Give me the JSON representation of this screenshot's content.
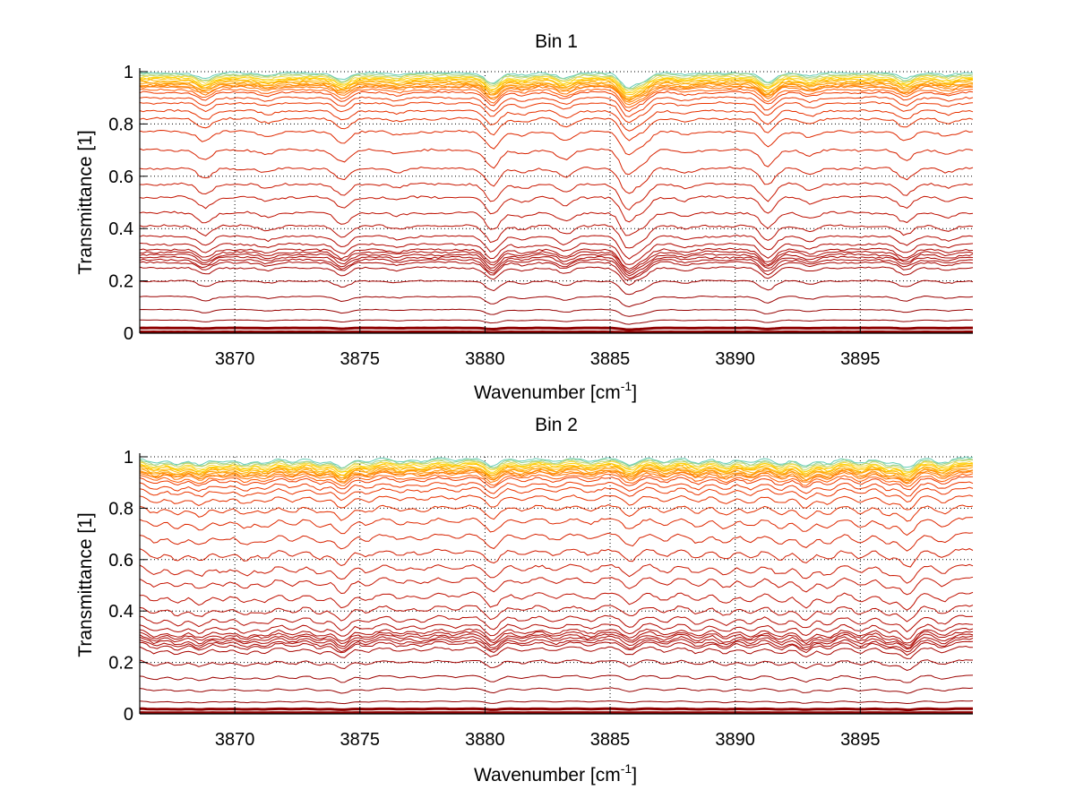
{
  "chart_data": [
    {
      "type": "line",
      "title": "Bin 1",
      "xlabel": "Wavenumber [cm",
      "xlabel_sup": "-1",
      "xlabel_suffix": "]",
      "ylabel": "Transmittance [1]",
      "xlim": [
        3866.2,
        3899.5
      ],
      "ylim": [
        0,
        1
      ],
      "xticks": [
        3870,
        3875,
        3880,
        3885,
        3890,
        3895
      ],
      "yticks": [
        0,
        0.2,
        0.4,
        0.6,
        0.8,
        1
      ],
      "ytick_labels": [
        "0",
        "0.2",
        "0.4",
        "0.6",
        "0.8",
        "1"
      ],
      "xtick_labels": [
        "3870",
        "3875",
        "3880",
        "3885",
        "3890",
        "3895"
      ],
      "grid": "dotted",
      "series_count": 40,
      "series_baselines": [
        0.995,
        0.99,
        0.985,
        0.98,
        0.975,
        0.97,
        0.965,
        0.96,
        0.955,
        0.95,
        0.945,
        0.94,
        0.93,
        0.92,
        0.9,
        0.88,
        0.85,
        0.82,
        0.77,
        0.7,
        0.63,
        0.57,
        0.52,
        0.46,
        0.41,
        0.37,
        0.34,
        0.32,
        0.31,
        0.3,
        0.29,
        0.28,
        0.27,
        0.25,
        0.2,
        0.14,
        0.09,
        0.05,
        0.02,
        0.005
      ],
      "absorption_dips": [
        {
          "x": 3868.8,
          "depth": 0.35
        },
        {
          "x": 3871.3,
          "depth": 0.15
        },
        {
          "x": 3874.3,
          "depth": 0.4
        },
        {
          "x": 3876.5,
          "depth": 0.12
        },
        {
          "x": 3880.3,
          "depth": 0.6
        },
        {
          "x": 3881.5,
          "depth": 0.15
        },
        {
          "x": 3883.2,
          "depth": 0.3
        },
        {
          "x": 3885.7,
          "depth": 0.8
        },
        {
          "x": 3886.3,
          "depth": 0.45
        },
        {
          "x": 3888.0,
          "depth": 0.12
        },
        {
          "x": 3891.3,
          "depth": 0.55
        },
        {
          "x": 3893.0,
          "depth": 0.2
        },
        {
          "x": 3896.8,
          "depth": 0.35
        },
        {
          "x": 3898.5,
          "depth": 0.15
        }
      ],
      "colormap": "jet (dark red at low transmittance → orange/yellow → cyan/blue near 1)"
    },
    {
      "type": "line",
      "title": "Bin 2",
      "xlabel": "Wavenumber [cm",
      "xlabel_sup": "-1",
      "xlabel_suffix": "]",
      "ylabel": "Transmittance [1]",
      "xlim": [
        3866.2,
        3899.5
      ],
      "ylim": [
        0,
        1
      ],
      "xticks": [
        3870,
        3875,
        3880,
        3885,
        3890,
        3895
      ],
      "yticks": [
        0,
        0.2,
        0.4,
        0.6,
        0.8,
        1
      ],
      "ytick_labels": [
        "0",
        "0.2",
        "0.4",
        "0.6",
        "0.8",
        "1"
      ],
      "xtick_labels": [
        "3870",
        "3875",
        "3880",
        "3885",
        "3890",
        "3895"
      ],
      "grid": "dotted",
      "series_count": 40,
      "series_baselines": [
        0.995,
        0.99,
        0.985,
        0.98,
        0.975,
        0.97,
        0.965,
        0.96,
        0.955,
        0.95,
        0.945,
        0.94,
        0.93,
        0.92,
        0.9,
        0.88,
        0.85,
        0.81,
        0.76,
        0.7,
        0.64,
        0.58,
        0.53,
        0.47,
        0.42,
        0.38,
        0.35,
        0.33,
        0.32,
        0.31,
        0.3,
        0.29,
        0.28,
        0.26,
        0.21,
        0.15,
        0.1,
        0.05,
        0.02,
        0.005
      ],
      "absorption_dips": [
        {
          "x": 3866.8,
          "depth": 0.3
        },
        {
          "x": 3867.7,
          "depth": 0.35
        },
        {
          "x": 3868.6,
          "depth": 0.4
        },
        {
          "x": 3869.5,
          "depth": 0.25
        },
        {
          "x": 3870.4,
          "depth": 0.35
        },
        {
          "x": 3871.2,
          "depth": 0.3
        },
        {
          "x": 3872.3,
          "depth": 0.25
        },
        {
          "x": 3873.4,
          "depth": 0.3
        },
        {
          "x": 3874.3,
          "depth": 0.55
        },
        {
          "x": 3875.3,
          "depth": 0.25
        },
        {
          "x": 3876.6,
          "depth": 0.2
        },
        {
          "x": 3877.5,
          "depth": 0.2
        },
        {
          "x": 3878.8,
          "depth": 0.15
        },
        {
          "x": 3880.3,
          "depth": 0.5
        },
        {
          "x": 3881.5,
          "depth": 0.2
        },
        {
          "x": 3882.8,
          "depth": 0.2
        },
        {
          "x": 3884.2,
          "depth": 0.2
        },
        {
          "x": 3885.8,
          "depth": 0.4
        },
        {
          "x": 3887.2,
          "depth": 0.25
        },
        {
          "x": 3888.5,
          "depth": 0.3
        },
        {
          "x": 3889.6,
          "depth": 0.35
        },
        {
          "x": 3890.6,
          "depth": 0.3
        },
        {
          "x": 3891.8,
          "depth": 0.35
        },
        {
          "x": 3892.8,
          "depth": 0.5
        },
        {
          "x": 3893.7,
          "depth": 0.35
        },
        {
          "x": 3895.0,
          "depth": 0.3
        },
        {
          "x": 3896.1,
          "depth": 0.35
        },
        {
          "x": 3896.9,
          "depth": 0.6
        },
        {
          "x": 3898.3,
          "depth": 0.3
        }
      ],
      "colormap": "jet (dark red at low transmittance → orange/yellow → cyan/blue near 1)"
    }
  ]
}
